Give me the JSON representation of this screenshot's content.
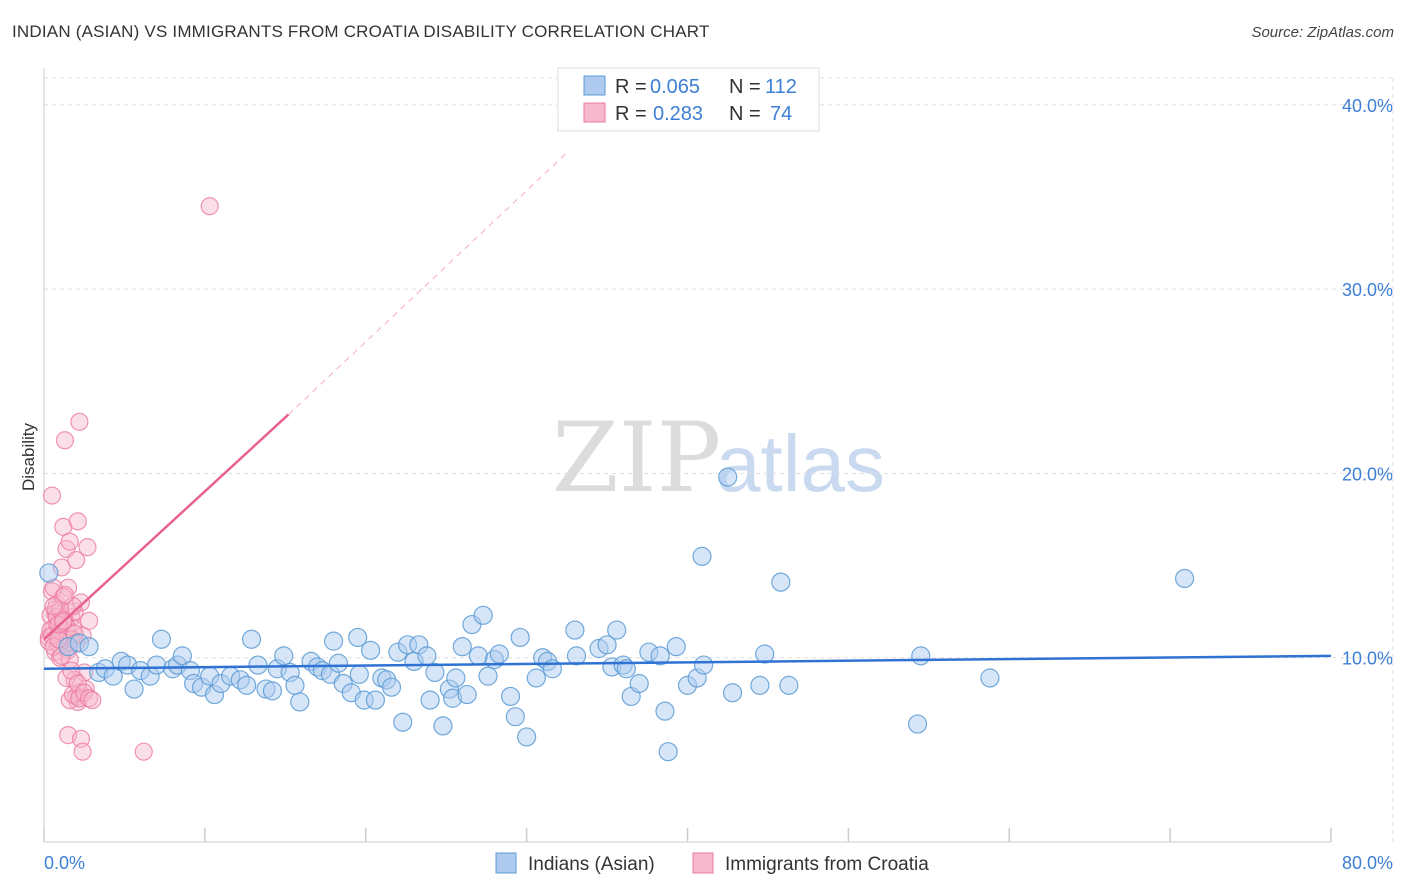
{
  "title": "INDIAN (ASIAN) VS IMMIGRANTS FROM CROATIA DISABILITY CORRELATION CHART",
  "source": "Source: ZipAtlas.com",
  "colors": {
    "blue": "#5b9bd5",
    "blue_fill": "#aecbef",
    "blue_line": "#2f72d4",
    "pink": "#ec7aa0",
    "pink_fill": "#f6b8cc",
    "pink_line": "#e8618f",
    "label": "#3d7fd4",
    "grid": "#dddddd"
  },
  "watermark": {
    "part1": "ZIP",
    "part2": "atlas"
  },
  "legend": {
    "rows": [
      {
        "r_label": "R = ",
        "r_value": "0.065",
        "n_label": "N = ",
        "n_value": "112"
      },
      {
        "r_label": "R = ",
        "r_value": "0.283",
        "n_label": "N = ",
        "n_value": "74"
      }
    ]
  },
  "chart_data": {
    "type": "scatter",
    "title": "INDIAN (ASIAN) VS IMMIGRANTS FROM CROATIA DISABILITY CORRELATION CHART",
    "xlabel": "",
    "ylabel": "Disability",
    "xlim": [
      0,
      80
    ],
    "ylim": [
      0,
      42
    ],
    "x_tick_labels": [
      "0.0%",
      "80.0%"
    ],
    "y_ticks": [
      10,
      20,
      30,
      40
    ],
    "y_tick_labels": [
      "10.0%",
      "20.0%",
      "30.0%",
      "40.0%"
    ],
    "series": [
      {
        "name": "Indians (Asian)",
        "r": 0.065,
        "n": 112,
        "trend": {
          "x": [
            0,
            80
          ],
          "y": [
            9.4,
            10.1
          ]
        },
        "points": [
          [
            0.3,
            14.6
          ],
          [
            1.5,
            10.6
          ],
          [
            2.2,
            10.8
          ],
          [
            2.8,
            10.6
          ],
          [
            3.4,
            9.2
          ],
          [
            3.8,
            9.4
          ],
          [
            4.3,
            9.0
          ],
          [
            4.8,
            9.8
          ],
          [
            5.2,
            9.6
          ],
          [
            5.6,
            8.3
          ],
          [
            6.0,
            9.3
          ],
          [
            6.6,
            9.0
          ],
          [
            7.0,
            9.6
          ],
          [
            7.3,
            11.0
          ],
          [
            8.0,
            9.4
          ],
          [
            8.3,
            9.6
          ],
          [
            8.6,
            10.1
          ],
          [
            9.1,
            9.3
          ],
          [
            9.3,
            8.6
          ],
          [
            9.8,
            8.4
          ],
          [
            10.3,
            9.0
          ],
          [
            10.6,
            8.0
          ],
          [
            11.0,
            8.6
          ],
          [
            11.6,
            9.0
          ],
          [
            12.2,
            8.8
          ],
          [
            12.6,
            8.5
          ],
          [
            12.9,
            11.0
          ],
          [
            13.3,
            9.6
          ],
          [
            13.8,
            8.3
          ],
          [
            14.2,
            8.2
          ],
          [
            14.5,
            9.4
          ],
          [
            14.9,
            10.1
          ],
          [
            15.3,
            9.2
          ],
          [
            15.6,
            8.5
          ],
          [
            15.9,
            7.6
          ],
          [
            16.6,
            9.8
          ],
          [
            17.0,
            9.5
          ],
          [
            17.3,
            9.3
          ],
          [
            17.8,
            9.1
          ],
          [
            18.0,
            10.9
          ],
          [
            18.3,
            9.7
          ],
          [
            18.6,
            8.6
          ],
          [
            19.1,
            8.1
          ],
          [
            19.5,
            11.1
          ],
          [
            19.6,
            9.1
          ],
          [
            19.9,
            7.7
          ],
          [
            20.3,
            10.4
          ],
          [
            20.6,
            7.7
          ],
          [
            21.0,
            8.9
          ],
          [
            21.3,
            8.8
          ],
          [
            21.6,
            8.4
          ],
          [
            22.0,
            10.3
          ],
          [
            22.3,
            6.5
          ],
          [
            22.6,
            10.7
          ],
          [
            23.0,
            9.8
          ],
          [
            23.3,
            10.7
          ],
          [
            23.8,
            10.1
          ],
          [
            24.0,
            7.7
          ],
          [
            24.3,
            9.2
          ],
          [
            24.8,
            6.3
          ],
          [
            25.2,
            8.3
          ],
          [
            25.4,
            7.8
          ],
          [
            25.6,
            8.9
          ],
          [
            26.0,
            10.6
          ],
          [
            26.3,
            8.0
          ],
          [
            26.6,
            11.8
          ],
          [
            27.0,
            10.1
          ],
          [
            27.3,
            12.3
          ],
          [
            27.6,
            9.0
          ],
          [
            28.0,
            9.9
          ],
          [
            28.3,
            10.2
          ],
          [
            29.0,
            7.9
          ],
          [
            29.3,
            6.8
          ],
          [
            29.6,
            11.1
          ],
          [
            30.0,
            5.7
          ],
          [
            30.6,
            8.9
          ],
          [
            31.0,
            10.0
          ],
          [
            31.3,
            9.8
          ],
          [
            31.6,
            9.4
          ],
          [
            33.0,
            11.5
          ],
          [
            33.1,
            10.1
          ],
          [
            34.5,
            10.5
          ],
          [
            35.0,
            10.7
          ],
          [
            35.3,
            9.5
          ],
          [
            35.6,
            11.5
          ],
          [
            36.0,
            9.6
          ],
          [
            36.2,
            9.4
          ],
          [
            36.5,
            7.9
          ],
          [
            37.0,
            8.6
          ],
          [
            37.6,
            10.3
          ],
          [
            38.3,
            10.1
          ],
          [
            38.6,
            7.1
          ],
          [
            38.8,
            4.9
          ],
          [
            39.3,
            10.6
          ],
          [
            40.0,
            8.5
          ],
          [
            40.6,
            8.9
          ],
          [
            40.9,
            15.5
          ],
          [
            41.0,
            9.6
          ],
          [
            42.5,
            19.8
          ],
          [
            42.8,
            8.1
          ],
          [
            44.5,
            8.5
          ],
          [
            44.8,
            10.2
          ],
          [
            45.8,
            14.1
          ],
          [
            46.3,
            8.5
          ],
          [
            54.5,
            10.1
          ],
          [
            54.3,
            6.4
          ],
          [
            58.8,
            8.9
          ],
          [
            70.9,
            14.3
          ]
        ]
      },
      {
        "name": "Immigrants from Croatia",
        "r": 0.283,
        "n": 74,
        "trend": {
          "x": [
            0,
            15.2
          ],
          "y": [
            11.0,
            23.2
          ]
        },
        "trend_dashed": {
          "x": [
            15.2,
            32.5
          ],
          "y": [
            23.2,
            37.4
          ]
        },
        "points": [
          [
            0.3,
            11.1
          ],
          [
            0.4,
            12.3
          ],
          [
            0.5,
            13.6
          ],
          [
            0.6,
            11.6
          ],
          [
            0.7,
            10.3
          ],
          [
            0.8,
            12.9
          ],
          [
            0.9,
            11.3
          ],
          [
            1.0,
            10.0
          ],
          [
            1.1,
            14.9
          ],
          [
            1.2,
            17.1
          ],
          [
            1.3,
            21.8
          ],
          [
            1.4,
            15.9
          ],
          [
            1.5,
            13.8
          ],
          [
            1.6,
            16.3
          ],
          [
            1.7,
            12.2
          ],
          [
            1.8,
            11.6
          ],
          [
            1.9,
            12.5
          ],
          [
            2.0,
            15.3
          ],
          [
            2.1,
            17.4
          ],
          [
            2.2,
            22.8
          ],
          [
            2.3,
            13.0
          ],
          [
            2.4,
            11.2
          ],
          [
            2.5,
            9.2
          ],
          [
            2.6,
            8.3
          ],
          [
            2.7,
            16.0
          ],
          [
            2.8,
            12.0
          ],
          [
            0.5,
            18.8
          ],
          [
            0.6,
            13.8
          ],
          [
            0.7,
            12.6
          ],
          [
            0.8,
            11.8
          ],
          [
            0.9,
            10.7
          ],
          [
            1.0,
            11.4
          ],
          [
            1.1,
            12.1
          ],
          [
            1.2,
            13.3
          ],
          [
            1.3,
            12.0
          ],
          [
            1.4,
            11.7
          ],
          [
            1.5,
            10.4
          ],
          [
            1.6,
            9.9
          ],
          [
            1.7,
            11.0
          ],
          [
            1.8,
            12.8
          ],
          [
            1.9,
            8.8
          ],
          [
            2.0,
            7.9
          ],
          [
            2.1,
            7.6
          ],
          [
            2.2,
            8.1
          ],
          [
            0.3,
            10.9
          ],
          [
            0.4,
            11.5
          ],
          [
            0.5,
            11.2
          ],
          [
            0.6,
            10.6
          ],
          [
            0.7,
            12.4
          ],
          [
            0.8,
            12.2
          ],
          [
            0.9,
            11.0
          ],
          [
            1.0,
            12.6
          ],
          [
            1.1,
            10.1
          ],
          [
            1.2,
            11.9
          ],
          [
            1.3,
            13.4
          ],
          [
            1.4,
            8.9
          ],
          [
            1.5,
            5.8
          ],
          [
            1.6,
            7.7
          ],
          [
            1.7,
            9.3
          ],
          [
            1.8,
            8.0
          ],
          [
            1.9,
            11.3
          ],
          [
            2.0,
            10.8
          ],
          [
            2.1,
            8.6
          ],
          [
            2.2,
            7.8
          ],
          [
            2.3,
            5.6
          ],
          [
            2.4,
            4.9
          ],
          [
            2.5,
            8.1
          ],
          [
            2.8,
            7.8
          ],
          [
            3.0,
            7.7
          ],
          [
            6.2,
            4.9
          ],
          [
            10.3,
            34.5
          ],
          [
            0.9,
            11.8
          ],
          [
            1.2,
            12.0
          ],
          [
            0.6,
            12.8
          ]
        ]
      }
    ]
  },
  "bottom_legend": [
    "Indians (Asian)",
    "Immigrants from Croatia"
  ]
}
